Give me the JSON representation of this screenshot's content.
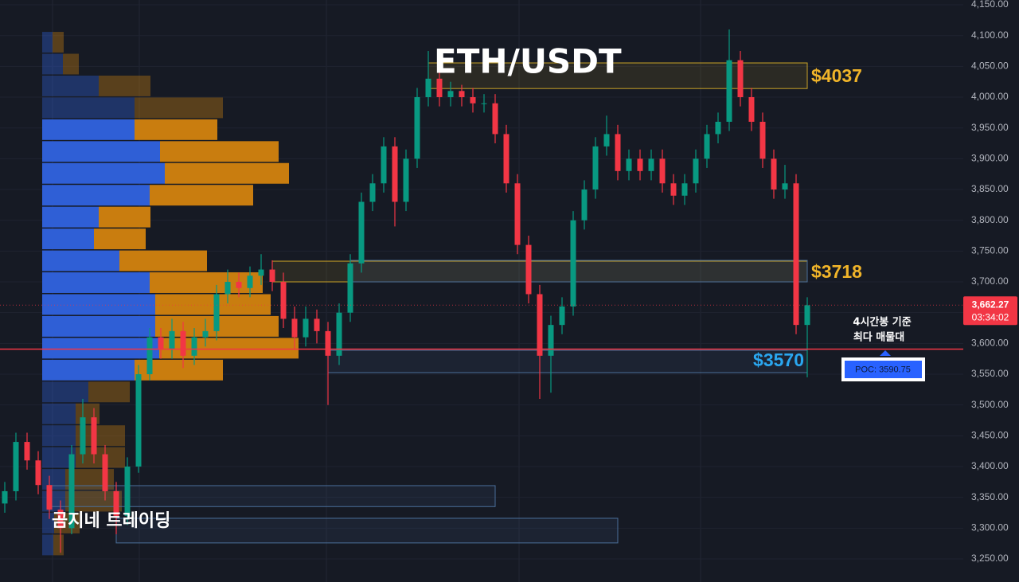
{
  "chart_data": {
    "type": "candlestick",
    "title": "ETH/USDT",
    "watermark": "곰지네 트레이딩",
    "ylim": [
      3212.5,
      4157.8
    ],
    "yticks": [
      {
        "value": 3250,
        "label": "3,250.00"
      },
      {
        "value": 3300,
        "label": "3,300.00"
      },
      {
        "value": 3350,
        "label": "3,350.00"
      },
      {
        "value": 3400,
        "label": "3,400.00"
      },
      {
        "value": 3450,
        "label": "3,450.00"
      },
      {
        "value": 3500,
        "label": "3,500.00"
      },
      {
        "value": 3550,
        "label": "3,550.00"
      },
      {
        "value": 3600,
        "label": "3,600.00"
      },
      {
        "value": 3650,
        "label": "3,650.00"
      },
      {
        "value": 3700,
        "label": "3,700.00"
      },
      {
        "value": 3750,
        "label": "3,750.00"
      },
      {
        "value": 3800,
        "label": "3,800.00"
      },
      {
        "value": 3850,
        "label": "3,850.00"
      },
      {
        "value": 3900,
        "label": "3,900.00"
      },
      {
        "value": 3950,
        "label": "3,950.00"
      },
      {
        "value": 4000,
        "label": "4,000.00"
      },
      {
        "value": 4050,
        "label": "4,050.00"
      },
      {
        "value": 4100,
        "label": "4,100.00"
      },
      {
        "value": 4150,
        "label": "4,150.00"
      }
    ],
    "grid": true,
    "up_color": "#089981",
    "down_color": "#f23645",
    "open": [
      3340,
      3360,
      3440,
      3410,
      3370,
      3330,
      3300,
      3420,
      3480,
      3420,
      3360,
      3320,
      3400,
      3550,
      3610,
      3590,
      3620,
      3580,
      3610,
      3620,
      3680,
      3700,
      3690,
      3710,
      3720,
      3700,
      3640,
      3610,
      3640,
      3620,
      3580,
      3650,
      3730,
      3830,
      3860,
      3920,
      3830,
      3900,
      4000,
      4030,
      4000,
      4010,
      4000,
      3990,
      3990,
      3940,
      3860,
      3760,
      3680,
      3580,
      3630,
      3660,
      3800,
      3850,
      3920,
      3940,
      3880,
      3900,
      3880,
      3900,
      3860,
      3840,
      3860,
      3900,
      3940,
      3960,
      4060,
      4000,
      3960,
      3900,
      3850,
      3860,
      3630
    ],
    "high": [
      3375,
      3455,
      3455,
      3425,
      3385,
      3345,
      3435,
      3510,
      3495,
      3435,
      3375,
      3415,
      3565,
      3625,
      3625,
      3640,
      3635,
      3625,
      3640,
      3695,
      3720,
      3715,
      3725,
      3745,
      3735,
      3715,
      3660,
      3660,
      3655,
      3635,
      3665,
      3745,
      3845,
      3875,
      3935,
      3935,
      3915,
      4015,
      4075,
      4045,
      4025,
      4020,
      4015,
      4005,
      4005,
      3955,
      3875,
      3775,
      3695,
      3645,
      3675,
      3815,
      3865,
      3935,
      3970,
      3955,
      3915,
      3915,
      3915,
      3915,
      3875,
      3875,
      3915,
      3955,
      3975,
      4110,
      4075,
      4015,
      3975,
      3915,
      3890,
      3875,
      3675
    ],
    "low": [
      3325,
      3345,
      3395,
      3355,
      3315,
      3260,
      3290,
      3405,
      3405,
      3345,
      3290,
      3305,
      3390,
      3540,
      3575,
      3575,
      3560,
      3565,
      3595,
      3605,
      3665,
      3675,
      3675,
      3695,
      3685,
      3625,
      3590,
      3595,
      3600,
      3500,
      3565,
      3635,
      3715,
      3815,
      3845,
      3790,
      3815,
      3885,
      3985,
      3985,
      3985,
      3985,
      3975,
      3975,
      3925,
      3845,
      3745,
      3665,
      3510,
      3520,
      3615,
      3645,
      3785,
      3835,
      3905,
      3865,
      3865,
      3865,
      3865,
      3845,
      3825,
      3825,
      3845,
      3885,
      3925,
      3945,
      3985,
      3945,
      3885,
      3835,
      3835,
      3615,
      3545
    ],
    "close": [
      3360,
      3440,
      3410,
      3370,
      3330,
      3300,
      3420,
      3480,
      3420,
      3360,
      3320,
      3400,
      3550,
      3610,
      3590,
      3620,
      3580,
      3610,
      3620,
      3680,
      3700,
      3690,
      3710,
      3720,
      3700,
      3640,
      3610,
      3640,
      3620,
      3580,
      3650,
      3730,
      3830,
      3860,
      3920,
      3830,
      3900,
      4000,
      4030,
      4000,
      4010,
      4000,
      3990,
      3990,
      3940,
      3860,
      3760,
      3680,
      3580,
      3630,
      3660,
      3800,
      3850,
      3920,
      3940,
      3880,
      3900,
      3880,
      3900,
      3860,
      3840,
      3860,
      3900,
      3940,
      3960,
      4060,
      4000,
      3960,
      3900,
      3850,
      3860,
      3630,
      3662
    ],
    "volume_profile": {
      "levels": [
        4106,
        4070.5,
        4035,
        3999.5,
        3964,
        3928.5,
        3893,
        3857.5,
        3822,
        3786.5,
        3751,
        3715.5,
        3680,
        3644.5,
        3609,
        3573.5,
        3538,
        3502.5,
        3467,
        3431.5,
        3396,
        3360.5,
        3325,
        3289.5
      ],
      "buy": [
        13,
        26,
        71,
        116,
        116,
        148,
        154,
        135,
        71,
        65,
        97,
        135,
        142,
        142,
        147,
        116,
        58,
        42,
        42,
        42,
        29,
        29,
        15,
        14
      ],
      "sell": [
        14,
        20,
        65,
        111,
        104,
        149,
        156,
        130,
        65,
        65,
        110,
        142,
        145,
        155,
        175,
        111,
        52,
        30,
        62,
        62,
        61,
        71,
        32,
        13
      ],
      "value_area": [
        3538,
        3964
      ],
      "buy_color": "#2f5fd6",
      "sell_color": "#c97d0f"
    },
    "zones": [
      {
        "top": 4055.6,
        "bottom": 4014,
        "start": 38,
        "end": 72,
        "color": "#c9a227",
        "label": "$4037",
        "label_color": "#f0b429"
      },
      {
        "top": 3733.6,
        "bottom": 3700,
        "start": 24,
        "end": 72,
        "color": "#c9a227",
        "label": "$3718",
        "label_color": "#f0b429"
      },
      {
        "top": 3734.9,
        "bottom": 3700,
        "start": 31,
        "end": 72,
        "color": "#4a6f9a"
      },
      {
        "top": 3588.8,
        "bottom": 3552.6,
        "start": 29,
        "end": 72,
        "color": "#4a6f9a",
        "label": "$3570",
        "label_color": "#2aa7f0"
      },
      {
        "top": 3369,
        "bottom": 3335,
        "start": 4,
        "end": 44,
        "color": "#4a6f9a"
      },
      {
        "top": 3316,
        "bottom": 3276,
        "start": 10,
        "end": 55,
        "color": "#4a6f9a"
      }
    ],
    "poc": {
      "value": 3590.75,
      "label": "POC: 3590.75",
      "note": [
        "4시간봉 기준",
        "최다 매물대"
      ],
      "color": "#f23645"
    },
    "current": {
      "value": 3662.27,
      "label": "3,662.27",
      "countdown": "03:34:02",
      "color": "#f23645"
    }
  }
}
